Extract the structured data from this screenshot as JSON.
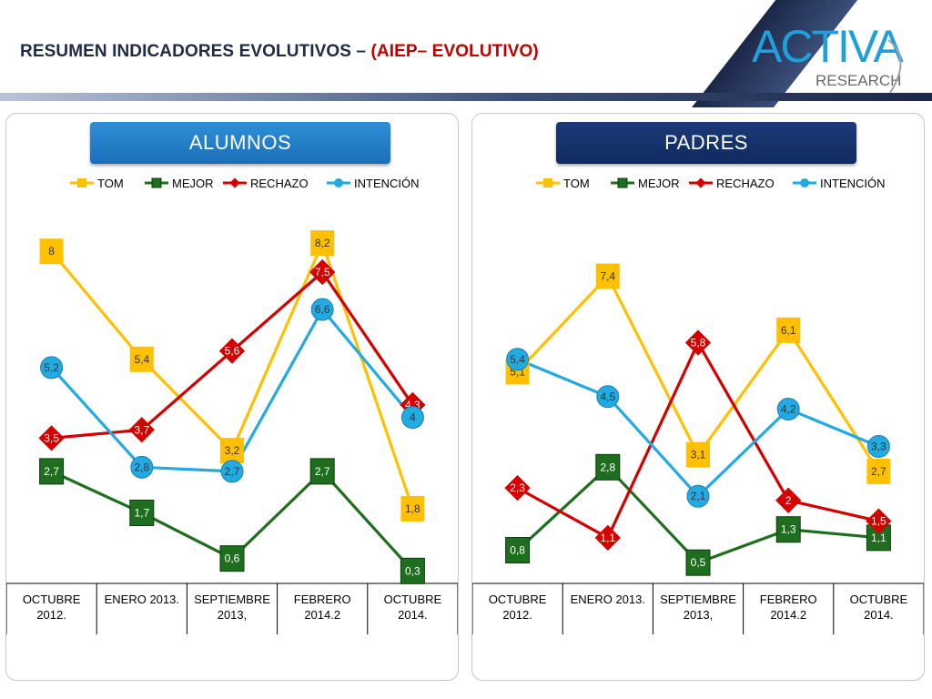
{
  "header": {
    "title_main": "RESUMEN INDICADORES EVOLUTIVOS – ",
    "title_accent": "(AIEP– EVOLUTIVO)",
    "logo_text_top": "ACTIVA",
    "logo_text_bottom": "RESEARCH",
    "colors": {
      "title": "#1f2a44",
      "accent": "#c00000",
      "bar_dark": "#1b2748"
    }
  },
  "legend": [
    "TOM",
    "MEJOR",
    "RECHAZO",
    "INTENCIÓN"
  ],
  "colors": {
    "TOM": "#ffc000",
    "MEJOR": "#1f6e1f",
    "RECHAZO": "#d40000",
    "INTENCIÓN": "#22aae2"
  },
  "chart_data": [
    {
      "type": "line",
      "title": "ALUMNOS",
      "categories": [
        "OCTUBRE\n2012.",
        "ENERO 2013.",
        "SEPTIEMBRE\n2013,",
        "FEBRERO\n2014.2",
        "OCTUBRE\n2014."
      ],
      "series": [
        {
          "name": "TOM",
          "values": [
            8,
            5.4,
            3.2,
            8.2,
            1.8
          ],
          "labels": [
            "8",
            "5,4",
            "3,2",
            "8,2",
            "1,8"
          ]
        },
        {
          "name": "MEJOR",
          "values": [
            2.7,
            1.7,
            0.6,
            2.7,
            0.3
          ],
          "labels": [
            "2,7",
            "1,7",
            "0,6",
            "2,7",
            "0,3"
          ]
        },
        {
          "name": "RECHAZO",
          "values": [
            3.5,
            3.7,
            5.6,
            7.5,
            4.3
          ],
          "labels": [
            "3,5",
            "3,7",
            "5,6",
            "7,5",
            "4,3"
          ]
        },
        {
          "name": "INTENCIÓN",
          "values": [
            5.2,
            2.8,
            2.7,
            6.6,
            4
          ],
          "labels": [
            "5,2",
            "2,8",
            "2,7",
            "6,6",
            "4"
          ]
        }
      ],
      "ylim": [
        0,
        10
      ],
      "legend_position": "top"
    },
    {
      "type": "line",
      "title": "PADRES",
      "categories": [
        "OCTUBRE\n2012.",
        "ENERO 2013.",
        "SEPTIEMBRE\n2013,",
        "FEBRERO\n2014.2",
        "OCTUBRE\n2014."
      ],
      "series": [
        {
          "name": "TOM",
          "values": [
            5.1,
            7.4,
            3.1,
            6.1,
            2.7
          ],
          "labels": [
            "5,1",
            "7,4",
            "3,1",
            "6,1",
            "2,7"
          ]
        },
        {
          "name": "MEJOR",
          "values": [
            0.8,
            2.8,
            0.5,
            1.3,
            1.1
          ],
          "labels": [
            "0,8",
            "2,8",
            "0,5",
            "1,3",
            "1,1"
          ]
        },
        {
          "name": "RECHAZO",
          "values": [
            2.3,
            1.1,
            5.8,
            2,
            1.5
          ],
          "labels": [
            "2,3",
            "1,1",
            "5,8",
            "2",
            "1,5"
          ]
        },
        {
          "name": "INTENCIÓN",
          "values": [
            5.4,
            4.5,
            2.1,
            4.2,
            3.3
          ],
          "labels": [
            "5,4",
            "4,5",
            "2,1",
            "4,2",
            "3,3"
          ]
        }
      ],
      "ylim": [
        0,
        10
      ],
      "legend_position": "top"
    }
  ]
}
